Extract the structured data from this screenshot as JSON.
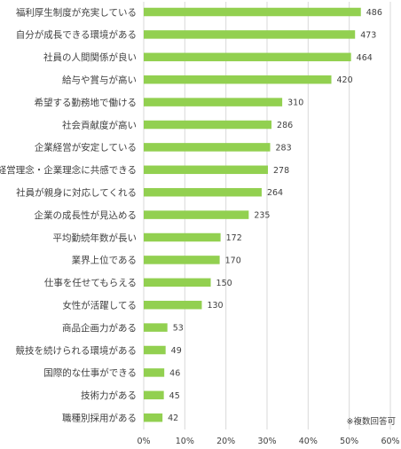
{
  "chart_data": {
    "type": "bar",
    "orientation": "horizontal",
    "categories": [
      "福利厚生制度が充実している",
      "自分が成長できる環境がある",
      "社員の人間関係が良い",
      "給与や賞与が高い",
      "希望する勤務地で働ける",
      "社会貢献度が高い",
      "企業経営が安定している",
      "経営理念・企業理念に共感できる",
      "社員が親身に対応してくれる",
      "企業の成長性が見込める",
      "平均勤続年数が長い",
      "業界上位である",
      "仕事を任せてもらえる",
      "女性が活躍してる",
      "商品企画力がある",
      "競技を続けられる環境がある",
      "国際的な仕事ができる",
      "技術力がある",
      "職種別採用がある"
    ],
    "values": [
      486,
      473,
      464,
      420,
      310,
      286,
      283,
      278,
      264,
      235,
      172,
      170,
      150,
      130,
      53,
      49,
      46,
      45,
      42
    ],
    "value_labels": [
      "486",
      "473",
      "464",
      "420",
      "310",
      "286",
      "283",
      "278",
      "264",
      "235",
      "172",
      "170",
      "150",
      "130",
      "53",
      "49",
      "46",
      "45",
      "42"
    ],
    "x_ticks": [
      "0%",
      "10%",
      "20%",
      "30%",
      "40%",
      "50%",
      "60%"
    ],
    "xlim": [
      0,
      60
    ],
    "scale_value_per_percent": 9.2,
    "bar_color": "#92d050",
    "grid": true,
    "note": "※複数回答可",
    "title": "",
    "xlabel": "",
    "ylabel": ""
  }
}
